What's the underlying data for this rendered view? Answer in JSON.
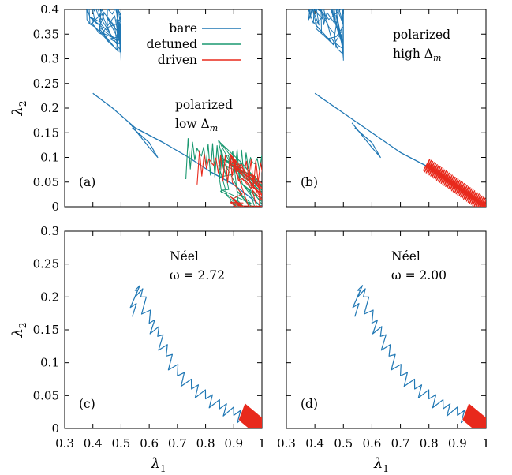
{
  "chart_data": [
    {
      "type": "line",
      "panel_label": "(a)",
      "annotation": [
        "polarized",
        "low Δ"
      ],
      "annotation_subscript": "m",
      "xlim": [
        0.3,
        1.0
      ],
      "ylim": [
        0,
        0.4
      ],
      "ylabel": "λ",
      "ylabel_subscript": "2",
      "yticks": [
        "0",
        "0.05",
        "0.1",
        "0.15",
        "0.2",
        "0.25",
        "0.3",
        "0.35",
        "0.4"
      ],
      "legend": {
        "position": "top-right",
        "entries": [
          "bare",
          "detuned",
          "driven"
        ]
      },
      "series": [
        {
          "name": "bare",
          "color": "#1f77b4",
          "tail": [
            [
              0.4,
              0.23
            ],
            [
              0.47,
              0.2
            ],
            [
              0.55,
              0.16
            ],
            [
              0.65,
              0.13
            ],
            [
              0.74,
              0.1
            ],
            [
              0.82,
              0.07
            ],
            [
              0.9,
              0.045
            ],
            [
              1.0,
              0.0
            ]
          ],
          "loop": [
            [
              0.53,
              0.17
            ],
            [
              0.6,
              0.12
            ],
            [
              0.63,
              0.1
            ],
            [
              0.6,
              0.13
            ],
            [
              0.54,
              0.16
            ]
          ],
          "blob": [
            0.3,
            0.18,
            0.2,
            0.28
          ]
        },
        {
          "name": "detuned",
          "color": "#1a9870",
          "blob": [
            0.73,
            0.02,
            0.95,
            0.12
          ]
        },
        {
          "name": "driven",
          "color": "#e8291c",
          "blob": [
            0.77,
            0.015,
            1.0,
            0.1
          ]
        }
      ]
    },
    {
      "type": "line",
      "panel_label": "(b)",
      "annotation": [
        "polarized",
        "high Δ"
      ],
      "annotation_subscript": "m",
      "xlim": [
        0.3,
        1.0
      ],
      "ylim": [
        0,
        0.4
      ],
      "series": [
        {
          "name": "bare",
          "color": "#1f77b4",
          "tail": [
            [
              0.4,
              0.23
            ],
            [
              0.55,
              0.17
            ],
            [
              0.7,
              0.11
            ],
            [
              0.8,
              0.08
            ]
          ],
          "loop": [
            [
              0.53,
              0.17
            ],
            [
              0.6,
              0.12
            ],
            [
              0.63,
              0.1
            ],
            [
              0.6,
              0.13
            ],
            [
              0.54,
              0.16
            ]
          ],
          "blob": [
            0.3,
            0.18,
            0.2,
            0.28
          ]
        },
        {
          "name": "driven",
          "color": "#e8291c",
          "band": [
            [
              0.79,
              0.085
            ],
            [
              1.0,
              0.0
            ]
          ]
        }
      ]
    },
    {
      "type": "line",
      "panel_label": "(c)",
      "annotation": [
        "Néel",
        "ω = 2.72"
      ],
      "xlim": [
        0.3,
        1.0
      ],
      "ylim": [
        0,
        0.3
      ],
      "xlabel": "λ",
      "xlabel_subscript": "1",
      "ylabel": "λ",
      "ylabel_subscript": "2",
      "xticks": [
        "0.3",
        "0.4",
        "0.5",
        "0.6",
        "0.7",
        "0.8",
        "0.9",
        "1"
      ],
      "yticks": [
        "0",
        "0.05",
        "0.1",
        "0.15",
        "0.2",
        "0.25",
        "0.3"
      ],
      "series": [
        {
          "name": "bare",
          "color": "#1f77b4",
          "curve": [
            [
              0.54,
              0.17
            ],
            [
              0.55,
              0.21
            ],
            [
              0.57,
              0.2
            ],
            [
              0.6,
              0.16
            ],
            [
              0.63,
              0.14
            ],
            [
              0.66,
              0.11
            ],
            [
              0.7,
              0.08
            ],
            [
              0.75,
              0.06
            ],
            [
              0.8,
              0.045
            ],
            [
              0.85,
              0.03
            ],
            [
              0.9,
              0.02
            ],
            [
              0.95,
              0.01
            ],
            [
              1.0,
              0.0
            ]
          ]
        },
        {
          "name": "driven",
          "color": "#e8291c",
          "band": [
            [
              0.93,
              0.025
            ],
            [
              1.0,
              0.0
            ]
          ]
        }
      ]
    },
    {
      "type": "line",
      "panel_label": "(d)",
      "annotation": [
        "Néel",
        "ω = 2.00"
      ],
      "xlim": [
        0.3,
        1.0
      ],
      "ylim": [
        0,
        0.3
      ],
      "xlabel": "λ",
      "xlabel_subscript": "1",
      "xticks": [
        "0.3",
        "0.4",
        "0.5",
        "0.6",
        "0.7",
        "0.8",
        "0.9",
        "1"
      ],
      "series": [
        {
          "name": "bare",
          "color": "#1f77b4",
          "curve": [
            [
              0.54,
              0.17
            ],
            [
              0.55,
              0.21
            ],
            [
              0.57,
              0.2
            ],
            [
              0.6,
              0.16
            ],
            [
              0.63,
              0.14
            ],
            [
              0.66,
              0.11
            ],
            [
              0.7,
              0.08
            ],
            [
              0.75,
              0.06
            ],
            [
              0.8,
              0.045
            ],
            [
              0.85,
              0.03
            ],
            [
              0.9,
              0.02
            ],
            [
              0.95,
              0.01
            ],
            [
              1.0,
              0.0
            ]
          ]
        },
        {
          "name": "driven",
          "color": "#e8291c",
          "band": [
            [
              0.93,
              0.025
            ],
            [
              1.0,
              0.0
            ]
          ]
        }
      ]
    }
  ]
}
